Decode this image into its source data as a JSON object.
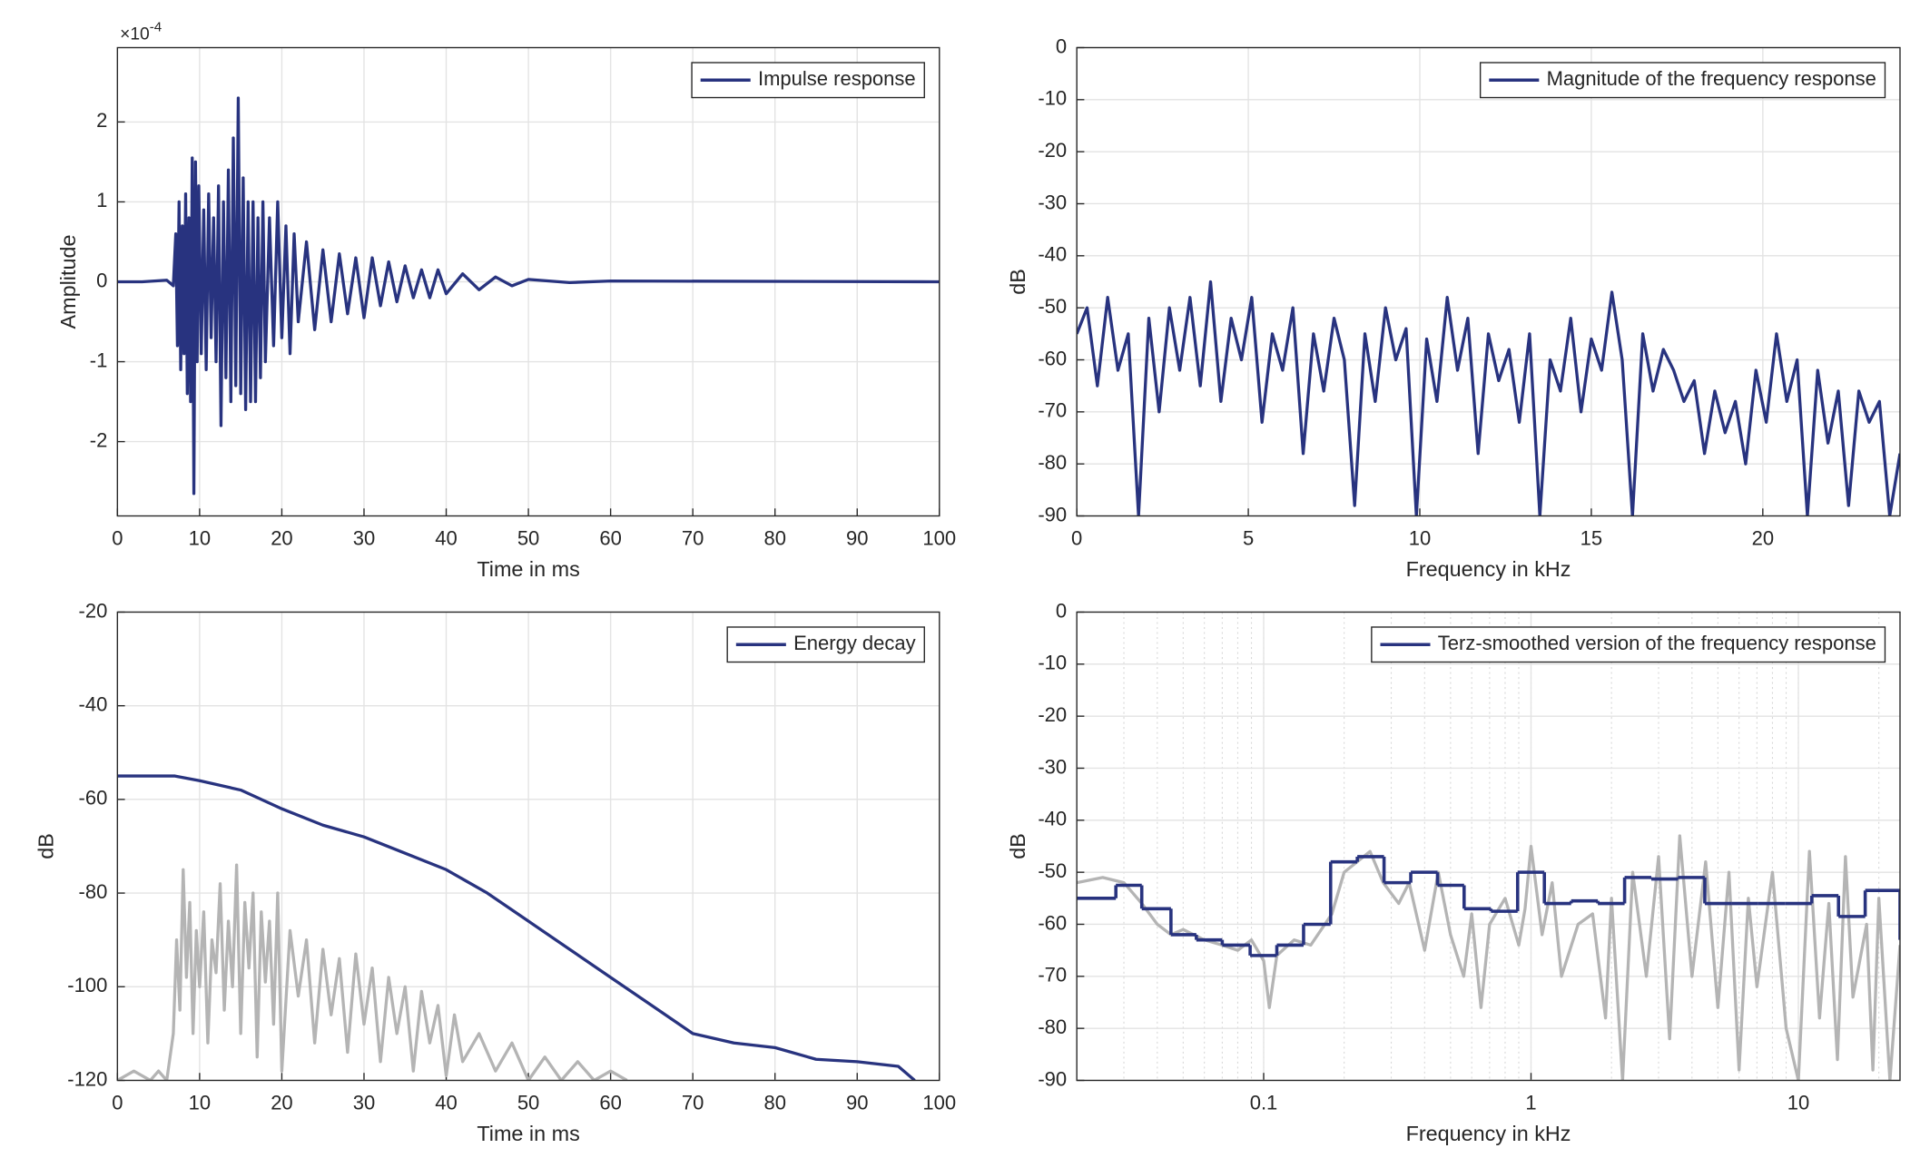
{
  "chart_data": [
    {
      "type": "line",
      "xlabel": "Time in ms",
      "ylabel": "Amplitude",
      "y_multiplier": "×10",
      "y_multiplier_exponent": "-4",
      "xlim": [
        0,
        100
      ],
      "ylim": [
        -2.93,
        2.93
      ],
      "xticks": [
        0,
        10,
        20,
        30,
        40,
        50,
        60,
        70,
        80,
        90,
        100
      ],
      "yticks": [
        -2,
        -1,
        0,
        1,
        2
      ],
      "grid": true,
      "legend": "northeast",
      "x": [
        0,
        3,
        6,
        6.8,
        7.1,
        7.3,
        7.5,
        7.7,
        7.9,
        8.1,
        8.3,
        8.5,
        8.7,
        8.9,
        9.1,
        9.3,
        9.5,
        9.7,
        9.9,
        10.2,
        10.5,
        10.8,
        11.1,
        11.4,
        11.7,
        12,
        12.3,
        12.6,
        12.9,
        13.2,
        13.5,
        13.8,
        14.1,
        14.4,
        14.7,
        15,
        15.3,
        15.6,
        15.9,
        16.2,
        16.5,
        16.8,
        17.1,
        17.4,
        17.7,
        18,
        18.5,
        19,
        19.5,
        20,
        20.5,
        21,
        21.5,
        22,
        23,
        24,
        25,
        26,
        27,
        28,
        29,
        30,
        31,
        32,
        33,
        34,
        35,
        36,
        37,
        38,
        39,
        40,
        42,
        44,
        46,
        48,
        50,
        55,
        60,
        100
      ],
      "series": [
        {
          "name": "Impulse response",
          "color": "#28337f",
          "values": [
            0,
            0,
            0.02,
            -0.05,
            0.6,
            -0.8,
            1.0,
            -1.1,
            0.7,
            -0.9,
            1.1,
            -1.4,
            0.8,
            -1.5,
            1.55,
            -2.65,
            1.5,
            -1.0,
            1.2,
            -0.9,
            0.9,
            -1.1,
            1.1,
            -0.7,
            0.8,
            -1.0,
            1.2,
            -1.8,
            1.0,
            -1.2,
            1.4,
            -1.5,
            1.8,
            -1.3,
            2.3,
            -1.4,
            1.3,
            -1.6,
            1.0,
            -1.5,
            1.0,
            -1.5,
            0.8,
            -1.2,
            1.0,
            -1.0,
            0.8,
            -0.8,
            1.0,
            -0.7,
            0.7,
            -0.9,
            0.6,
            -0.5,
            0.5,
            -0.6,
            0.4,
            -0.5,
            0.35,
            -0.4,
            0.3,
            -0.45,
            0.3,
            -0.3,
            0.25,
            -0.25,
            0.2,
            -0.2,
            0.15,
            -0.2,
            0.15,
            -0.15,
            0.1,
            -0.1,
            0.06,
            -0.05,
            0.03,
            -0.01,
            0.01,
            0
          ]
        }
      ]
    },
    {
      "type": "line",
      "xlabel": "Frequency in kHz",
      "ylabel": "dB",
      "xlim": [
        0,
        24
      ],
      "ylim": [
        -90,
        0
      ],
      "xticks": [
        0,
        5,
        10,
        15,
        20
      ],
      "yticks": [
        0,
        -10,
        -20,
        -30,
        -40,
        -50,
        -60,
        -70,
        -80,
        -90
      ],
      "grid": true,
      "legend": "northeast",
      "x": [
        0,
        0.3,
        0.6,
        0.9,
        1.2,
        1.5,
        1.8,
        2.1,
        2.4,
        2.7,
        3.0,
        3.3,
        3.6,
        3.9,
        4.2,
        4.5,
        4.8,
        5.1,
        5.4,
        5.7,
        6.0,
        6.3,
        6.6,
        6.9,
        7.2,
        7.5,
        7.8,
        8.1,
        8.4,
        8.7,
        9.0,
        9.3,
        9.6,
        9.9,
        10.2,
        10.5,
        10.8,
        11.1,
        11.4,
        11.7,
        12.0,
        12.3,
        12.6,
        12.9,
        13.2,
        13.5,
        13.8,
        14.1,
        14.4,
        14.7,
        15.0,
        15.3,
        15.6,
        15.9,
        16.2,
        16.5,
        16.8,
        17.1,
        17.4,
        17.7,
        18.0,
        18.3,
        18.6,
        18.9,
        19.2,
        19.5,
        19.8,
        20.1,
        20.4,
        20.7,
        21.0,
        21.3,
        21.6,
        21.9,
        22.2,
        22.5,
        22.8,
        23.1,
        23.4,
        23.7,
        24.0
      ],
      "series": [
        {
          "name": "Magnitude of the frequency response",
          "color": "#28337f",
          "values": [
            -55,
            -50,
            -65,
            -48,
            -62,
            -55,
            -90,
            -52,
            -70,
            -50,
            -62,
            -48,
            -65,
            -45,
            -68,
            -52,
            -60,
            -48,
            -72,
            -55,
            -62,
            -50,
            -78,
            -55,
            -66,
            -52,
            -60,
            -88,
            -55,
            -68,
            -50,
            -60,
            -54,
            -90,
            -56,
            -68,
            -48,
            -62,
            -52,
            -78,
            -55,
            -64,
            -58,
            -72,
            -55,
            -90,
            -60,
            -66,
            -52,
            -70,
            -56,
            -62,
            -47,
            -60,
            -90,
            -55,
            -66,
            -58,
            -62,
            -68,
            -64,
            -78,
            -66,
            -74,
            -68,
            -80,
            -62,
            -72,
            -55,
            -68,
            -60,
            -90,
            -62,
            -76,
            -66,
            -88,
            -66,
            -72,
            -68,
            -90,
            -78
          ]
        }
      ]
    },
    {
      "type": "line",
      "xlabel": "Time in ms",
      "ylabel": "dB",
      "xlim": [
        0,
        100
      ],
      "ylim": [
        -120,
        -20
      ],
      "xticks": [
        0,
        10,
        20,
        30,
        40,
        50,
        60,
        70,
        80,
        90,
        100
      ],
      "yticks": [
        -120,
        -100,
        -80,
        -60,
        -40,
        -20
      ],
      "grid": true,
      "legend": "northeast",
      "series": [
        {
          "color": "#b4b4b4",
          "x": [
            0,
            2,
            4,
            5,
            6,
            6.8,
            7.2,
            7.6,
            8,
            8.4,
            8.8,
            9.2,
            9.6,
            10,
            10.5,
            11,
            11.5,
            12,
            12.5,
            13,
            13.5,
            14,
            14.5,
            15,
            15.5,
            16,
            16.5,
            17,
            17.5,
            18,
            18.5,
            19,
            19.5,
            20,
            21,
            22,
            23,
            24,
            25,
            26,
            27,
            28,
            29,
            30,
            31,
            32,
            33,
            34,
            35,
            36,
            37,
            38,
            39,
            40,
            41,
            42,
            44,
            46,
            48,
            50,
            52,
            54,
            56,
            58,
            60,
            62
          ],
          "values": [
            -120,
            -118,
            -120,
            -118,
            -120,
            -110,
            -90,
            -105,
            -75,
            -98,
            -82,
            -110,
            -88,
            -100,
            -84,
            -112,
            -90,
            -97,
            -78,
            -105,
            -86,
            -100,
            -74,
            -110,
            -82,
            -96,
            -80,
            -115,
            -84,
            -99,
            -86,
            -108,
            -80,
            -118,
            -88,
            -102,
            -90,
            -112,
            -92,
            -106,
            -94,
            -114,
            -93,
            -108,
            -96,
            -116,
            -98,
            -110,
            -100,
            -118,
            -101,
            -112,
            -104,
            -119,
            -106,
            -116,
            -110,
            -118,
            -112,
            -120,
            -115,
            -120,
            -116,
            -120,
            -118,
            -120
          ]
        },
        {
          "name": "Energy decay",
          "color": "#28337f",
          "x": [
            0,
            7,
            10,
            15,
            20,
            25,
            30,
            35,
            40,
            45,
            50,
            55,
            60,
            65,
            70,
            75,
            80,
            85,
            90,
            95,
            97
          ],
          "values": [
            -55,
            -55,
            -56,
            -58,
            -62,
            -65.5,
            -68,
            -71.5,
            -75,
            -80,
            -86,
            -92,
            -98,
            -104,
            -110,
            -112,
            -113,
            -115.5,
            -116,
            -117,
            -120
          ]
        }
      ]
    },
    {
      "type": "line",
      "xlabel": "Frequency in kHz",
      "ylabel": "dB",
      "xscale": "log",
      "xlim": [
        0.02,
        24
      ],
      "ylim": [
        -90,
        0
      ],
      "xticks": [
        0.1,
        1,
        10
      ],
      "yticks": [
        0,
        -10,
        -20,
        -30,
        -40,
        -50,
        -60,
        -70,
        -80,
        -90
      ],
      "grid": true,
      "minor_grid": true,
      "legend": "northeast",
      "series": [
        {
          "color": "#b4b4b4",
          "x": [
            0.02,
            0.025,
            0.03,
            0.035,
            0.04,
            0.045,
            0.05,
            0.06,
            0.07,
            0.08,
            0.09,
            0.1,
            0.105,
            0.112,
            0.13,
            0.15,
            0.18,
            0.2,
            0.25,
            0.28,
            0.32,
            0.35,
            0.4,
            0.45,
            0.5,
            0.56,
            0.6,
            0.65,
            0.7,
            0.8,
            0.9,
            0.95,
            1.0,
            1.1,
            1.2,
            1.3,
            1.5,
            1.7,
            1.9,
            2.0,
            2.2,
            2.4,
            2.7,
            3.0,
            3.3,
            3.6,
            4.0,
            4.5,
            5.0,
            5.5,
            6.0,
            6.5,
            7.0,
            8.0,
            9.0,
            10,
            11,
            12,
            13,
            14,
            15,
            16,
            18,
            19,
            20,
            22,
            24
          ],
          "values": [
            -52,
            -51,
            -52,
            -56,
            -60,
            -62,
            -61,
            -63,
            -64,
            -65,
            -63,
            -67,
            -76,
            -66,
            -63,
            -64,
            -58,
            -50,
            -46,
            -52,
            -56,
            -52,
            -65,
            -50,
            -62,
            -70,
            -58,
            -76,
            -60,
            -55,
            -64,
            -57,
            -45,
            -62,
            -52,
            -70,
            -60,
            -58,
            -78,
            -55,
            -90,
            -50,
            -70,
            -47,
            -82,
            -43,
            -70,
            -48,
            -76,
            -50,
            -88,
            -55,
            -72,
            -50,
            -80,
            -90,
            -46,
            -78,
            -56,
            -86,
            -47,
            -74,
            -60,
            -88,
            -55,
            -90,
            -64
          ]
        },
        {
          "name": "Terz-smoothed version of the frequency response",
          "color": "#28337f",
          "drawstyle": "steps-post",
          "x": [
            0.02,
            0.028,
            0.035,
            0.045,
            0.056,
            0.07,
            0.089,
            0.112,
            0.141,
            0.178,
            0.224,
            0.282,
            0.355,
            0.447,
            0.562,
            0.708,
            0.891,
            1.122,
            1.413,
            1.778,
            2.239,
            2.818,
            3.548,
            4.467,
            5.623,
            7.079,
            8.913,
            11.22,
            14.13,
            17.78,
            24
          ],
          "values": [
            -55,
            -52.5,
            -57,
            -62,
            -63,
            -64,
            -66,
            -64,
            -60,
            -48,
            -47,
            -52,
            -50,
            -52.5,
            -57,
            -57.5,
            -50,
            -56,
            -55.5,
            -56,
            -51,
            -51.3,
            -51,
            -56,
            -56,
            -56,
            -56,
            -54.5,
            -58.5,
            -53.5,
            -63
          ]
        }
      ]
    }
  ]
}
